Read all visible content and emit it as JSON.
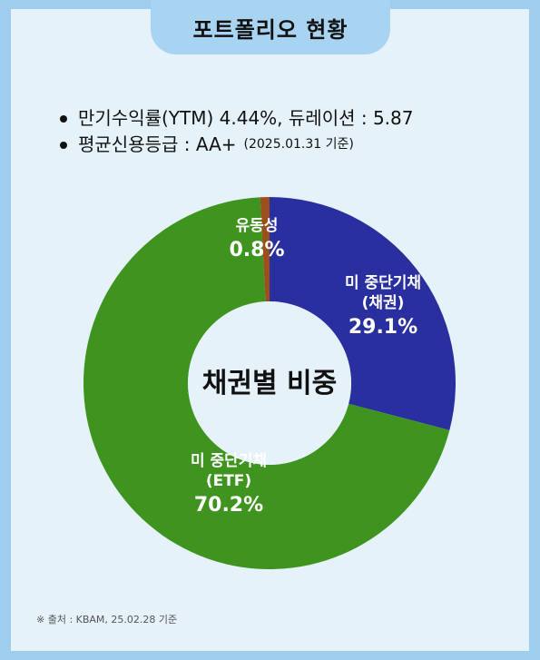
{
  "header": {
    "title": "포트폴리오 현황"
  },
  "bullets": {
    "line1": "만기수익률(YTM) 4.44%,  듀레이션 : 5.87",
    "line2_main": "평균신용등급 : AA+",
    "line2_note": "(2025.01.31 기준)"
  },
  "chart_data": {
    "type": "pie",
    "title": "채권별 비중",
    "slices": [
      {
        "label_lines": [
          "미 중단기채",
          "(채권)"
        ],
        "value": 29.1,
        "value_label": "29.1%",
        "color": "#2a2fa0"
      },
      {
        "label_lines": [
          "미 중단기채",
          "(ETF)"
        ],
        "value": 70.2,
        "value_label": "70.2%",
        "color": "#3e941e"
      },
      {
        "label_lines": [
          "유동성"
        ],
        "value": 0.8,
        "value_label": "0.8%",
        "color": "#9a4f1c"
      }
    ]
  },
  "source": "※ 출처 : KBAM, 25.02.28 기준"
}
